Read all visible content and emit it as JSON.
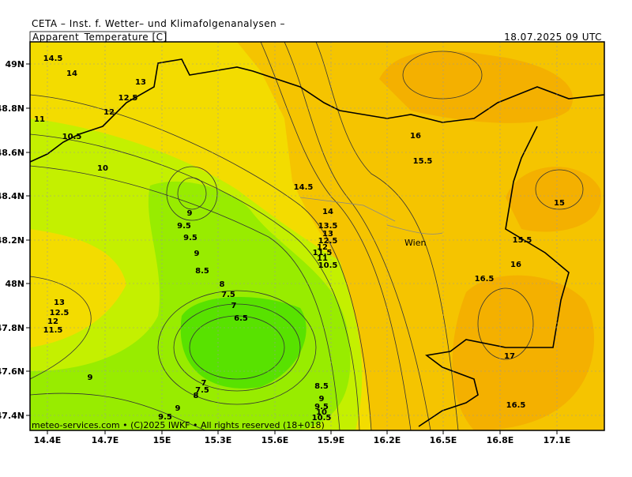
{
  "header": {
    "source": "CETA – Inst. f. Wetter– und Klimafolgenanalysen –",
    "parameter": "Apparent_Temperature [C]",
    "time": "18.07.2025 09 UTC"
  },
  "axes": {
    "x_labels": [
      "14.4E",
      "14.7E",
      "15E",
      "15.3E",
      "15.6E",
      "15.9E",
      "16.2E",
      "16.5E",
      "16.8E",
      "17.1E"
    ],
    "y_labels": [
      "49N",
      "48.8N",
      "48.6N",
      "48.4N",
      "48.2N",
      "48N",
      "47.8N",
      "47.6N",
      "47.4N"
    ]
  },
  "contour_labels": [
    "14.5",
    "14",
    "13",
    "12.5",
    "12",
    "11",
    "10.5",
    "10",
    "9",
    "9.5",
    "9.5",
    "9",
    "8.5",
    "8",
    "7.5",
    "7",
    "6.5",
    "13",
    "12.5",
    "12",
    "11.5",
    "9",
    "7",
    "7.5",
    "8",
    "9",
    "9.5",
    "8.5",
    "9",
    "9.5",
    "10",
    "10.5",
    "14.5",
    "14",
    "13.5",
    "13",
    "12.5",
    "12",
    "11.5",
    "11",
    "10.5",
    "16",
    "15.5",
    "15",
    "15.5",
    "16",
    "16.5",
    "17",
    "16.5"
  ],
  "place": "Wien",
  "footer": "meteo-services.com • (C)2025 IWKF • All rights reserved (18+018)"
}
